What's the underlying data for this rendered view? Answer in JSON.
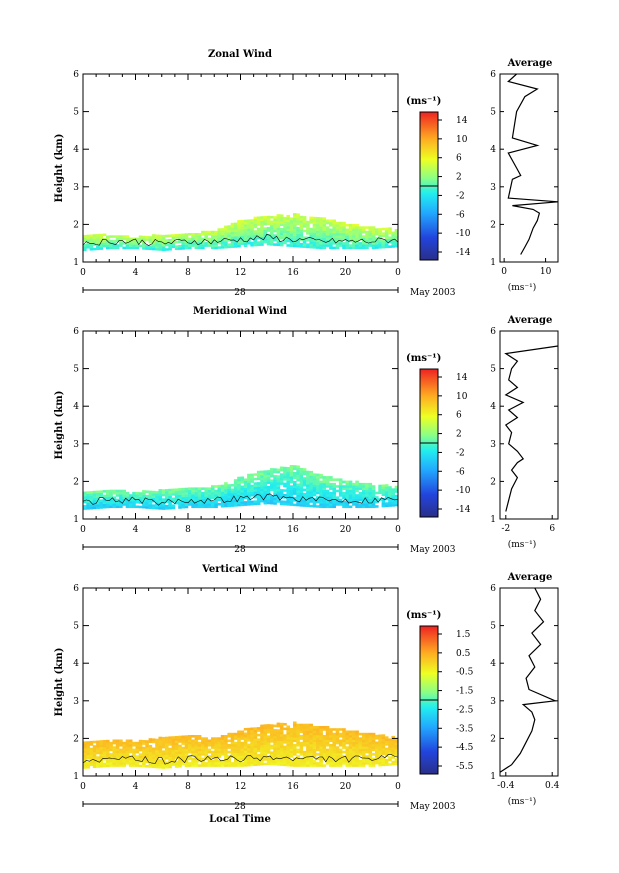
{
  "chart_data": [
    {
      "type": "heatmap",
      "title": "Zonal Wind",
      "ylabel": "Height (km)",
      "xlabel": "",
      "xticks": [
        "0",
        "4",
        "8",
        "12",
        "16",
        "20",
        "0"
      ],
      "yticks": [
        "1",
        "2",
        "3",
        "4",
        "5",
        "6"
      ],
      "ylim": [
        1,
        6
      ],
      "xlim": [
        0,
        24
      ],
      "date_label": "28",
      "month_label": "May 2003",
      "colorbar": {
        "unit": "(ms⁻¹)",
        "ticks": [
          "14",
          "10",
          "6",
          "2",
          "-2",
          "-6",
          "-10",
          "-14"
        ],
        "range": [
          -14,
          14
        ]
      },
      "field": {
        "base": [
          [
            0,
            1.3
          ],
          [
            2,
            1.35
          ],
          [
            4,
            1.35
          ],
          [
            6,
            1.3
          ],
          [
            8,
            1.35
          ],
          [
            10,
            1.35
          ],
          [
            12,
            1.4
          ],
          [
            14,
            1.45
          ],
          [
            16,
            1.4
          ],
          [
            18,
            1.35
          ],
          [
            20,
            1.35
          ],
          [
            22,
            1.35
          ],
          [
            24,
            1.4
          ]
        ],
        "top": [
          [
            0,
            1.7
          ],
          [
            2,
            1.7
          ],
          [
            4,
            1.65
          ],
          [
            6,
            1.7
          ],
          [
            8,
            1.75
          ],
          [
            10,
            1.8
          ],
          [
            12,
            2.1
          ],
          [
            14,
            2.2
          ],
          [
            16,
            2.25
          ],
          [
            18,
            2.15
          ],
          [
            20,
            2.0
          ],
          [
            22,
            1.9
          ],
          [
            24,
            1.85
          ]
        ],
        "low_value": -2,
        "high_value": 5
      },
      "average": {
        "title": "Average",
        "xlabel": "(ms⁻¹)",
        "xticks": [
          "0",
          "10"
        ],
        "xlim": [
          -1,
          13
        ],
        "profile": [
          [
            4,
            1.2
          ],
          [
            5,
            1.4
          ],
          [
            6,
            1.6
          ],
          [
            7,
            1.9
          ],
          [
            8,
            2.1
          ],
          [
            8.5,
            2.3
          ],
          [
            7,
            2.4
          ],
          [
            2,
            2.5
          ],
          [
            13,
            2.6
          ],
          [
            1,
            2.7
          ],
          [
            2,
            3.2
          ],
          [
            4,
            3.3
          ],
          [
            3,
            3.5
          ],
          [
            1,
            3.9
          ],
          [
            8,
            4.1
          ],
          [
            2,
            4.3
          ],
          [
            3,
            5.0
          ],
          [
            5,
            5.4
          ],
          [
            8,
            5.6
          ],
          [
            1,
            5.8
          ],
          [
            3,
            6.0
          ]
        ]
      }
    },
    {
      "type": "heatmap",
      "title": "Meridional Wind",
      "ylabel": "Height (km)",
      "xlabel": "",
      "xticks": [
        "0",
        "4",
        "8",
        "12",
        "16",
        "20",
        "0"
      ],
      "yticks": [
        "1",
        "2",
        "3",
        "4",
        "5",
        "6"
      ],
      "ylim": [
        1,
        6
      ],
      "xlim": [
        0,
        24
      ],
      "date_label": "28",
      "month_label": "May 2003",
      "colorbar": {
        "unit": "(ms⁻¹)",
        "ticks": [
          "14",
          "10",
          "6",
          "2",
          "-2",
          "-6",
          "-10",
          "-14"
        ],
        "range": [
          -14,
          14
        ]
      },
      "field": {
        "base": [
          [
            0,
            1.25
          ],
          [
            2,
            1.3
          ],
          [
            4,
            1.3
          ],
          [
            6,
            1.25
          ],
          [
            8,
            1.3
          ],
          [
            10,
            1.3
          ],
          [
            12,
            1.35
          ],
          [
            14,
            1.4
          ],
          [
            16,
            1.35
          ],
          [
            18,
            1.3
          ],
          [
            20,
            1.3
          ],
          [
            22,
            1.3
          ],
          [
            24,
            1.35
          ]
        ],
        "top": [
          [
            0,
            1.7
          ],
          [
            2,
            1.75
          ],
          [
            4,
            1.7
          ],
          [
            6,
            1.75
          ],
          [
            8,
            1.8
          ],
          [
            10,
            1.85
          ],
          [
            12,
            2.1
          ],
          [
            14,
            2.3
          ],
          [
            16,
            2.4
          ],
          [
            18,
            2.15
          ],
          [
            20,
            2.0
          ],
          [
            22,
            1.9
          ],
          [
            24,
            1.85
          ]
        ],
        "low_value": -4,
        "high_value": 2
      },
      "average": {
        "title": "Average",
        "xlabel": "(ms⁻¹)",
        "xticks": [
          "-2",
          "6"
        ],
        "xlim": [
          -3,
          7
        ],
        "profile": [
          [
            -2,
            1.2
          ],
          [
            -1.5,
            1.5
          ],
          [
            -1,
            1.8
          ],
          [
            0,
            2.1
          ],
          [
            -1,
            2.3
          ],
          [
            0,
            2.5
          ],
          [
            1,
            2.6
          ],
          [
            0,
            2.8
          ],
          [
            -1.5,
            3.0
          ],
          [
            -1,
            3.3
          ],
          [
            -2,
            3.5
          ],
          [
            0,
            3.7
          ],
          [
            -1.5,
            3.9
          ],
          [
            1,
            4.1
          ],
          [
            -2,
            4.3
          ],
          [
            0,
            4.5
          ],
          [
            -1.5,
            4.7
          ],
          [
            -1,
            5.0
          ],
          [
            0,
            5.2
          ],
          [
            -2,
            5.4
          ],
          [
            7,
            5.6
          ]
        ]
      }
    },
    {
      "type": "heatmap",
      "title": "Vertical Wind",
      "ylabel": "Height (km)",
      "xlabel": "Local Time",
      "xticks": [
        "0",
        "4",
        "8",
        "12",
        "16",
        "20",
        "0"
      ],
      "yticks": [
        "1",
        "2",
        "3",
        "4",
        "5",
        "6"
      ],
      "ylim": [
        1,
        6
      ],
      "xlim": [
        0,
        24
      ],
      "date_label": "28",
      "month_label": "May 2003",
      "colorbar": {
        "unit": "(ms⁻¹)",
        "ticks": [
          "1.5",
          "0.5",
          "-0.5",
          "-1.5",
          "-2.5",
          "-3.5",
          "-4.5",
          "-5.5"
        ],
        "range": [
          -6,
          2
        ]
      },
      "field": {
        "base": [
          [
            0,
            1.2
          ],
          [
            2,
            1.25
          ],
          [
            4,
            1.25
          ],
          [
            6,
            1.2
          ],
          [
            8,
            1.25
          ],
          [
            10,
            1.25
          ],
          [
            12,
            1.25
          ],
          [
            14,
            1.3
          ],
          [
            16,
            1.25
          ],
          [
            18,
            1.25
          ],
          [
            20,
            1.25
          ],
          [
            22,
            1.25
          ],
          [
            24,
            1.3
          ]
        ],
        "top": [
          [
            0,
            1.9
          ],
          [
            2,
            1.95
          ],
          [
            4,
            1.9
          ],
          [
            6,
            2.0
          ],
          [
            8,
            2.05
          ],
          [
            10,
            2.0
          ],
          [
            12,
            2.2
          ],
          [
            14,
            2.35
          ],
          [
            16,
            2.4
          ],
          [
            18,
            2.3
          ],
          [
            20,
            2.2
          ],
          [
            22,
            2.1
          ],
          [
            24,
            2.0
          ]
        ],
        "low_value": -0.5,
        "high_value": 0.5
      },
      "average": {
        "title": "Average",
        "xlabel": "(ms⁻¹)",
        "xticks": [
          "-0.4",
          "0.4"
        ],
        "xlim": [
          -0.5,
          0.5
        ],
        "profile": [
          [
            -0.5,
            1.1
          ],
          [
            -0.3,
            1.3
          ],
          [
            -0.15,
            1.6
          ],
          [
            -0.05,
            1.9
          ],
          [
            0.05,
            2.2
          ],
          [
            0.1,
            2.5
          ],
          [
            0.05,
            2.7
          ],
          [
            -0.1,
            2.9
          ],
          [
            0.45,
            3.0
          ],
          [
            0.0,
            3.3
          ],
          [
            -0.05,
            3.6
          ],
          [
            0.1,
            3.9
          ],
          [
            0.0,
            4.2
          ],
          [
            0.2,
            4.5
          ],
          [
            0.05,
            4.8
          ],
          [
            0.25,
            5.1
          ],
          [
            0.1,
            5.4
          ],
          [
            0.2,
            5.7
          ],
          [
            0.1,
            6.0
          ]
        ]
      }
    }
  ]
}
